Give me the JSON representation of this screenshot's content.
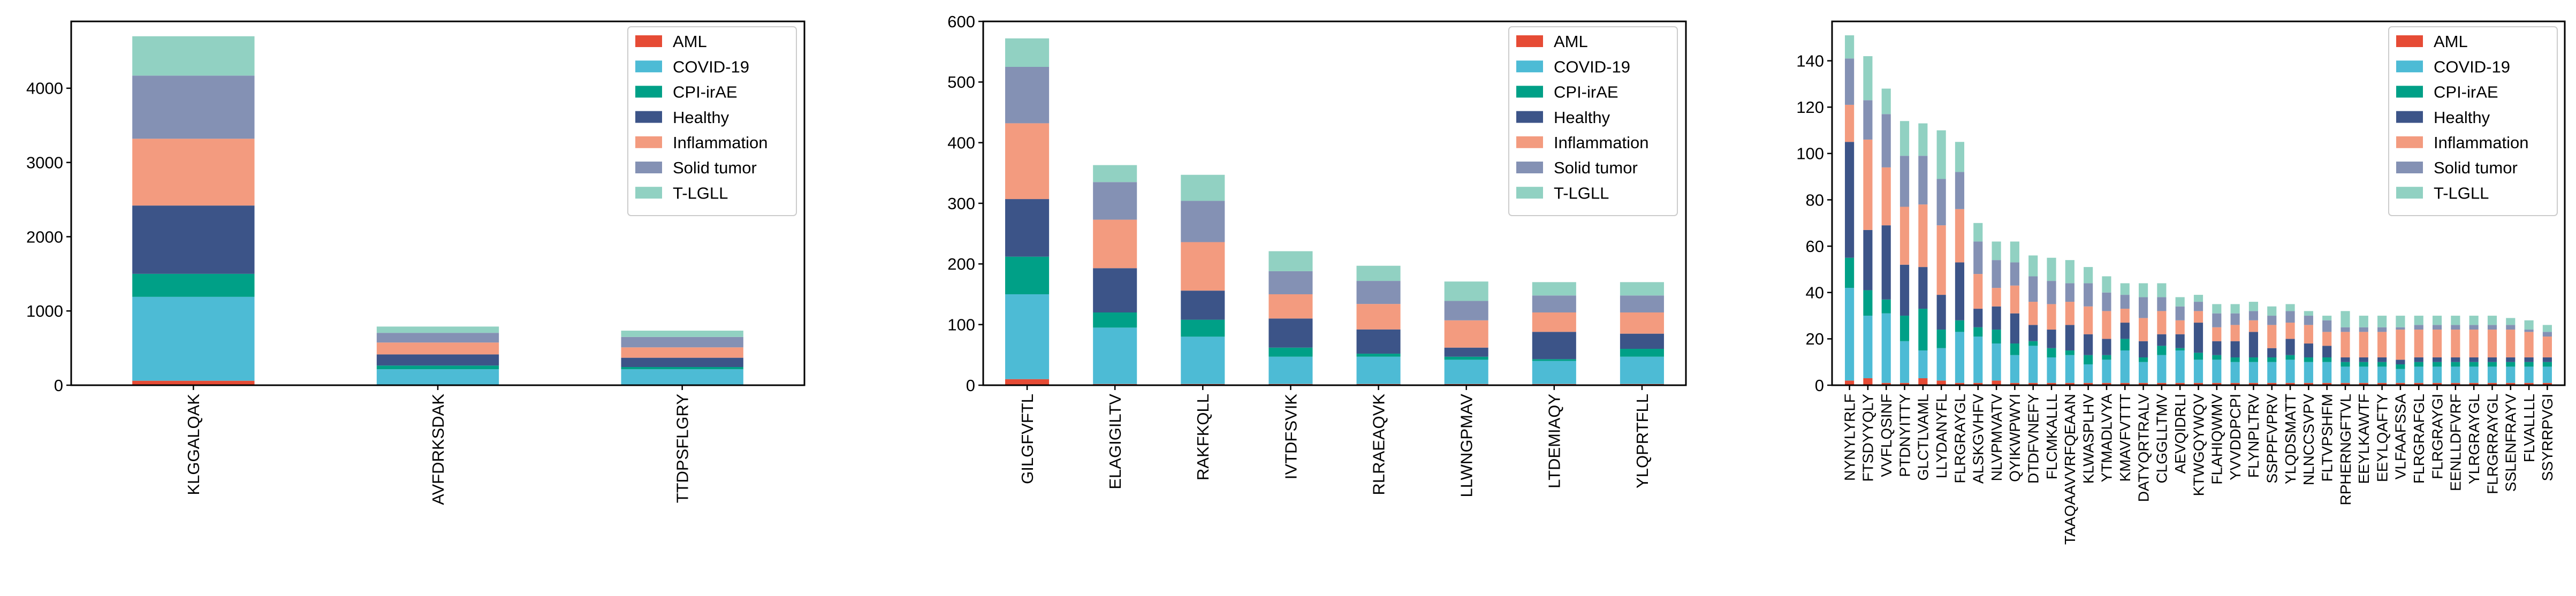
{
  "legend_labels": [
    "AML",
    "COVID-19",
    "CPI-irAE",
    "Healthy",
    "Inflammation",
    "Solid tumor",
    "T-LGLL"
  ],
  "colors": {
    "AML": "#e64b35",
    "COVID-19": "#4dbbd5",
    "CPI-irAE": "#00a087",
    "Healthy": "#3c5488",
    "Inflammation": "#f39b7f",
    "Solid tumor": "#8491b4",
    "T-LGLL": "#91d1c2"
  },
  "chart_data": [
    {
      "type": "bar",
      "stacked": true,
      "legend_position": "top-right",
      "grid": false,
      "ylim": [
        0,
        4900
      ],
      "yticks": [
        0,
        1000,
        2000,
        3000,
        4000
      ],
      "categories": [
        "KLGGALQAK",
        "AVFDRKSDAK",
        "TTDPSFLGRY"
      ],
      "series": [
        {
          "name": "AML",
          "values": [
            60,
            5,
            5
          ]
        },
        {
          "name": "COVID-19",
          "values": [
            1130,
            210,
            210
          ]
        },
        {
          "name": "CPI-irAE",
          "values": [
            310,
            50,
            30
          ]
        },
        {
          "name": "Healthy",
          "values": [
            920,
            150,
            125
          ]
        },
        {
          "name": "Inflammation",
          "values": [
            900,
            160,
            140
          ]
        },
        {
          "name": "Solid tumor",
          "values": [
            850,
            130,
            140
          ]
        },
        {
          "name": "T-LGLL",
          "values": [
            530,
            85,
            85
          ]
        }
      ]
    },
    {
      "type": "bar",
      "stacked": true,
      "legend_position": "top-right",
      "grid": false,
      "ylim": [
        0,
        600
      ],
      "yticks": [
        0,
        100,
        200,
        300,
        400,
        500,
        600
      ],
      "categories": [
        "GILGFVFTL",
        "ELAGIGILTV",
        "RAKFKQLL",
        "IVTDFSVIK",
        "RLRAEAQVK",
        "LLWNGPMAV",
        "LTDEMIAQY",
        "YLQPRTFLL"
      ],
      "series": [
        {
          "name": "AML",
          "values": [
            10,
            2,
            2,
            2,
            2,
            2,
            2,
            2
          ]
        },
        {
          "name": "COVID-19",
          "values": [
            140,
            93,
            78,
            45,
            45,
            40,
            38,
            45
          ]
        },
        {
          "name": "CPI-irAE",
          "values": [
            62,
            25,
            28,
            15,
            5,
            5,
            3,
            13
          ]
        },
        {
          "name": "Healthy",
          "values": [
            95,
            73,
            48,
            48,
            40,
            15,
            45,
            25
          ]
        },
        {
          "name": "Inflammation",
          "values": [
            125,
            80,
            80,
            40,
            42,
            45,
            32,
            35
          ]
        },
        {
          "name": "Solid tumor",
          "values": [
            93,
            62,
            68,
            38,
            38,
            32,
            28,
            28
          ]
        },
        {
          "name": "T-LGLL",
          "values": [
            47,
            28,
            43,
            33,
            25,
            32,
            22,
            22
          ]
        }
      ]
    },
    {
      "type": "bar",
      "stacked": true,
      "legend_position": "top-right",
      "grid": false,
      "ylim": [
        0,
        157
      ],
      "yticks": [
        0,
        20,
        40,
        60,
        80,
        100,
        120,
        140
      ],
      "categories": [
        "NYNYLYRLF",
        "FTSDYYQLY",
        "VVFLQSINF",
        "PTDNYITTY",
        "GLCTLVAML",
        "LLYDANYFL",
        "FLRGRAYGL",
        "ALSKGVHFV",
        "NLVPMVATV",
        "QYIKWPWYI",
        "DTDFVNEFY",
        "FLCMKALLL",
        "TAAQAAVVRFQEAAN",
        "KLWASPLHV",
        "YTMADLVYA",
        "KMAVFVTTT",
        "DATYQRTRALV",
        "CLGGLLTMV",
        "AEVQIDRLI",
        "KTWGQYWQV",
        "FLAHIQWMV",
        "YVVDDPCPI",
        "FLYNPLTRV",
        "SSPPFVPRV",
        "YLQDSMATT",
        "NLNCCSVPV",
        "FLTVPSHFM",
        "RPHERNGFTVL",
        "EEYLKAWTF",
        "EEYLQAFTY",
        "VLFAAFSSA",
        "FLRGRAFGL",
        "FLRGRAYGI",
        "EENLLDFVRF",
        "YLRGRAYGL",
        "FLRGRRAYGL",
        "SSLENFRAYV",
        "FLVALLLL",
        "SSYRRPVGI"
      ],
      "series": [
        {
          "name": "AML",
          "values": [
            2,
            3,
            1,
            1,
            3,
            2,
            1,
            1,
            2,
            1,
            1,
            1,
            1,
            1,
            1,
            1,
            1,
            1,
            1,
            1,
            1,
            1,
            1,
            1,
            1,
            1,
            1,
            1,
            1,
            1,
            1,
            1,
            1,
            1,
            1,
            1,
            1,
            1,
            1
          ]
        },
        {
          "name": "COVID-19",
          "values": [
            40,
            27,
            30,
            18,
            12,
            14,
            22,
            20,
            16,
            12,
            16,
            11,
            12,
            8,
            10,
            14,
            9,
            12,
            14,
            10,
            10,
            9,
            9,
            9,
            10,
            9,
            9,
            7,
            7,
            7,
            6,
            7,
            7,
            7,
            7,
            7,
            7,
            7,
            7
          ]
        },
        {
          "name": "CPI-irAE",
          "values": [
            13,
            11,
            6,
            11,
            18,
            8,
            5,
            4,
            6,
            5,
            2,
            4,
            2,
            4,
            2,
            5,
            2,
            4,
            1,
            3,
            2,
            2,
            2,
            2,
            2,
            2,
            2,
            2,
            2,
            2,
            2,
            2,
            2,
            2,
            2,
            2,
            2,
            2,
            2
          ]
        },
        {
          "name": "Healthy",
          "values": [
            50,
            26,
            32,
            22,
            18,
            15,
            25,
            8,
            10,
            13,
            7,
            8,
            11,
            9,
            7,
            7,
            7,
            5,
            6,
            13,
            6,
            7,
            11,
            4,
            7,
            6,
            5,
            2,
            2,
            2,
            2,
            2,
            2,
            2,
            2,
            2,
            2,
            2,
            2
          ]
        },
        {
          "name": "Inflammation",
          "values": [
            16,
            39,
            25,
            25,
            27,
            30,
            23,
            15,
            8,
            12,
            10,
            11,
            10,
            12,
            12,
            6,
            10,
            10,
            6,
            5,
            6,
            7,
            5,
            10,
            7,
            8,
            6,
            11,
            11,
            11,
            13,
            12,
            12,
            12,
            12,
            12,
            12,
            11,
            9
          ]
        },
        {
          "name": "Solid tumor",
          "values": [
            20,
            17,
            23,
            22,
            21,
            20,
            16,
            14,
            12,
            10,
            11,
            10,
            8,
            10,
            8,
            6,
            9,
            6,
            6,
            4,
            6,
            5,
            4,
            4,
            5,
            4,
            5,
            2,
            2,
            2,
            1,
            2,
            2,
            2,
            2,
            2,
            2,
            1,
            2
          ]
        },
        {
          "name": "T-LGLL",
          "values": [
            10,
            19,
            11,
            15,
            14,
            21,
            13,
            8,
            8,
            9,
            9,
            10,
            10,
            7,
            7,
            5,
            6,
            6,
            4,
            3,
            4,
            4,
            4,
            4,
            3,
            2,
            2,
            7,
            5,
            5,
            5,
            4,
            4,
            4,
            4,
            4,
            3,
            4,
            3
          ]
        }
      ]
    }
  ]
}
